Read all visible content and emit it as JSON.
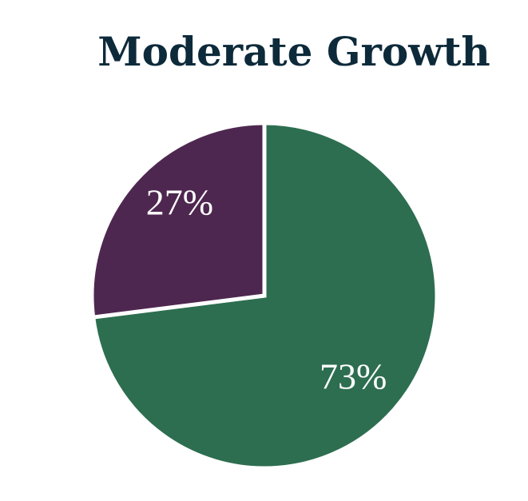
{
  "chart_data": {
    "type": "pie",
    "title": "Moderate Growth",
    "values": [
      73,
      27
    ],
    "value_labels": [
      "73%",
      "27%"
    ],
    "colors": [
      "#2d6e50",
      "#4e2750"
    ]
  }
}
